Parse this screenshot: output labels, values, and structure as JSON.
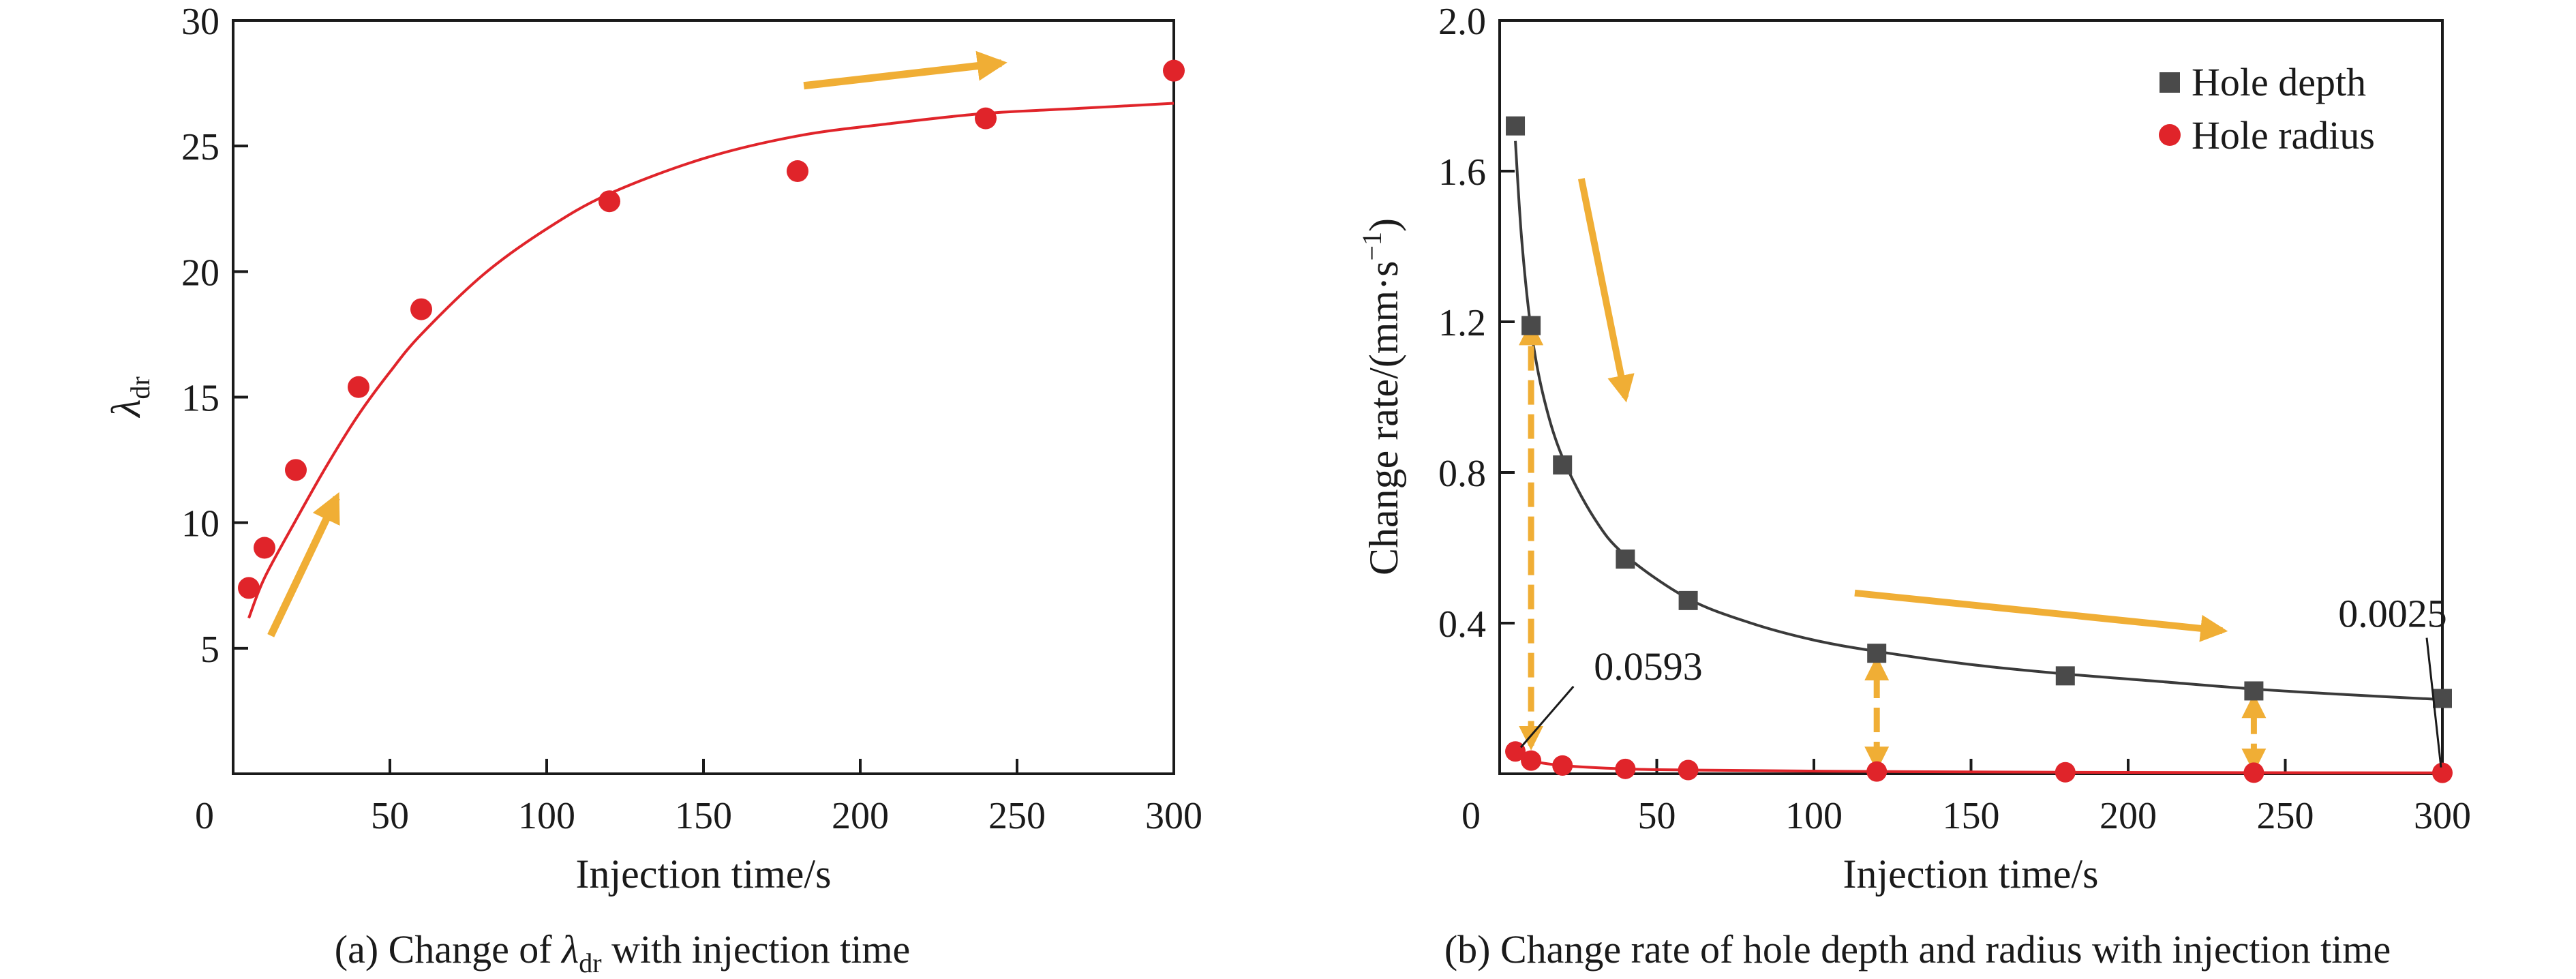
{
  "colors": {
    "accent_red": "#e0242a",
    "marker_dark": "#4a4a4a",
    "curve_dark": "#3a3a3a",
    "curve_red": "#e0242a",
    "arrow_orange": "#f0ae35",
    "axis": "#1a1a1a"
  },
  "chart_data": [
    {
      "type": "scatter",
      "caption_prefix": "(a) Change of ",
      "caption_symbol": "λ",
      "caption_sub": "dr",
      "caption_suffix": " with injection time",
      "xlabel": "Injection time/s",
      "ylabel_symbol": "λ",
      "ylabel_sub": "dr",
      "xlim": [
        0,
        300
      ],
      "ylim": [
        0,
        30
      ],
      "x_ticks": [
        "0",
        "50",
        "100",
        "150",
        "200",
        "250",
        "300"
      ],
      "y_ticks": [
        "5",
        "10",
        "15",
        "20",
        "25",
        "30"
      ],
      "grid": false,
      "series": [
        {
          "marker": "circle",
          "color": "#e0242a",
          "points": [
            {
              "x": 5,
              "y": 7.4
            },
            {
              "x": 10,
              "y": 9.0
            },
            {
              "x": 20,
              "y": 12.1
            },
            {
              "x": 40,
              "y": 15.4
            },
            {
              "x": 60,
              "y": 18.5
            },
            {
              "x": 120,
              "y": 22.8
            },
            {
              "x": 180,
              "y": 24.0
            },
            {
              "x": 240,
              "y": 26.1
            },
            {
              "x": 300,
              "y": 28.0
            }
          ],
          "fit_curve": [
            {
              "x": 5,
              "y": 6.2
            },
            {
              "x": 10,
              "y": 7.8
            },
            {
              "x": 20,
              "y": 10.1
            },
            {
              "x": 30,
              "y": 12.3
            },
            {
              "x": 40,
              "y": 14.3
            },
            {
              "x": 50,
              "y": 16.0
            },
            {
              "x": 60,
              "y": 17.5
            },
            {
              "x": 80,
              "y": 19.9
            },
            {
              "x": 100,
              "y": 21.7
            },
            {
              "x": 120,
              "y": 23.1
            },
            {
              "x": 150,
              "y": 24.5
            },
            {
              "x": 180,
              "y": 25.4
            },
            {
              "x": 210,
              "y": 25.9
            },
            {
              "x": 240,
              "y": 26.3
            },
            {
              "x": 270,
              "y": 26.5
            },
            {
              "x": 300,
              "y": 26.7
            }
          ]
        }
      ],
      "trend_arrows": [
        {
          "from": [
            12,
            5.5
          ],
          "to": [
            33,
            11.0
          ]
        },
        {
          "from": [
            182,
            27.4
          ],
          "to": [
            245,
            28.3
          ]
        }
      ]
    },
    {
      "type": "scatter",
      "caption": "(b) Change rate of hole depth and radius with injection time",
      "xlabel": "Injection time/s",
      "ylabel_main": "Change rate/(mm·s",
      "ylabel_sup": "−1",
      "ylabel_end": ")",
      "xlim": [
        0,
        300
      ],
      "ylim": [
        0,
        2.0
      ],
      "x_ticks": [
        "0",
        "50",
        "100",
        "150",
        "200",
        "250",
        "300"
      ],
      "y_ticks": [
        "0.4",
        "0.8",
        "1.2",
        "1.6",
        "2.0"
      ],
      "grid": false,
      "legend_position": "top-right",
      "series": [
        {
          "name": "Hole depth",
          "marker": "square",
          "color": "#4a4a4a",
          "points": [
            {
              "x": 5,
              "y": 1.72
            },
            {
              "x": 10,
              "y": 1.19
            },
            {
              "x": 20,
              "y": 0.82
            },
            {
              "x": 40,
              "y": 0.57
            },
            {
              "x": 60,
              "y": 0.46
            },
            {
              "x": 120,
              "y": 0.32
            },
            {
              "x": 180,
              "y": 0.26
            },
            {
              "x": 240,
              "y": 0.22
            },
            {
              "x": 300,
              "y": 0.2
            }
          ],
          "fit_curve": [
            {
              "x": 5,
              "y": 1.68
            },
            {
              "x": 7,
              "y": 1.42
            },
            {
              "x": 10,
              "y": 1.18
            },
            {
              "x": 14,
              "y": 1.0
            },
            {
              "x": 20,
              "y": 0.84
            },
            {
              "x": 30,
              "y": 0.68
            },
            {
              "x": 40,
              "y": 0.58
            },
            {
              "x": 60,
              "y": 0.465
            },
            {
              "x": 80,
              "y": 0.4
            },
            {
              "x": 100,
              "y": 0.355
            },
            {
              "x": 120,
              "y": 0.325
            },
            {
              "x": 150,
              "y": 0.29
            },
            {
              "x": 180,
              "y": 0.265
            },
            {
              "x": 210,
              "y": 0.245
            },
            {
              "x": 240,
              "y": 0.225
            },
            {
              "x": 270,
              "y": 0.21
            },
            {
              "x": 300,
              "y": 0.197
            }
          ]
        },
        {
          "name": "Hole radius",
          "marker": "circle",
          "color": "#e0242a",
          "points": [
            {
              "x": 5,
              "y": 0.0593
            },
            {
              "x": 10,
              "y": 0.035
            },
            {
              "x": 20,
              "y": 0.022
            },
            {
              "x": 40,
              "y": 0.013
            },
            {
              "x": 60,
              "y": 0.01
            },
            {
              "x": 120,
              "y": 0.006
            },
            {
              "x": 180,
              "y": 0.004
            },
            {
              "x": 240,
              "y": 0.003
            },
            {
              "x": 300,
              "y": 0.0025
            }
          ],
          "fit_curve": [
            {
              "x": 5,
              "y": 0.055
            },
            {
              "x": 10,
              "y": 0.035
            },
            {
              "x": 20,
              "y": 0.022
            },
            {
              "x": 40,
              "y": 0.013
            },
            {
              "x": 60,
              "y": 0.01
            },
            {
              "x": 120,
              "y": 0.006
            },
            {
              "x": 180,
              "y": 0.004
            },
            {
              "x": 240,
              "y": 0.003
            },
            {
              "x": 300,
              "y": 0.0025
            }
          ]
        }
      ],
      "annotations": [
        {
          "text": "0.0593",
          "point": [
            5,
            0.0593
          ],
          "label_at": [
            30,
            0.25
          ]
        },
        {
          "text": "0.0025",
          "point": [
            300,
            0.0025
          ],
          "label_at": [
            282,
            0.39
          ]
        }
      ],
      "trend_arrows": [
        {
          "from": [
            26,
            1.58
          ],
          "to": [
            40,
            1.0
          ]
        },
        {
          "from": [
            113,
            0.48
          ],
          "to": [
            230,
            0.38
          ]
        }
      ],
      "gap_arrows": [
        {
          "x": 10,
          "from": 0.075,
          "to": 1.19
        },
        {
          "x": 120,
          "from": 0.02,
          "to": 0.3
        },
        {
          "x": 240,
          "from": 0.015,
          "to": 0.2
        }
      ]
    }
  ]
}
